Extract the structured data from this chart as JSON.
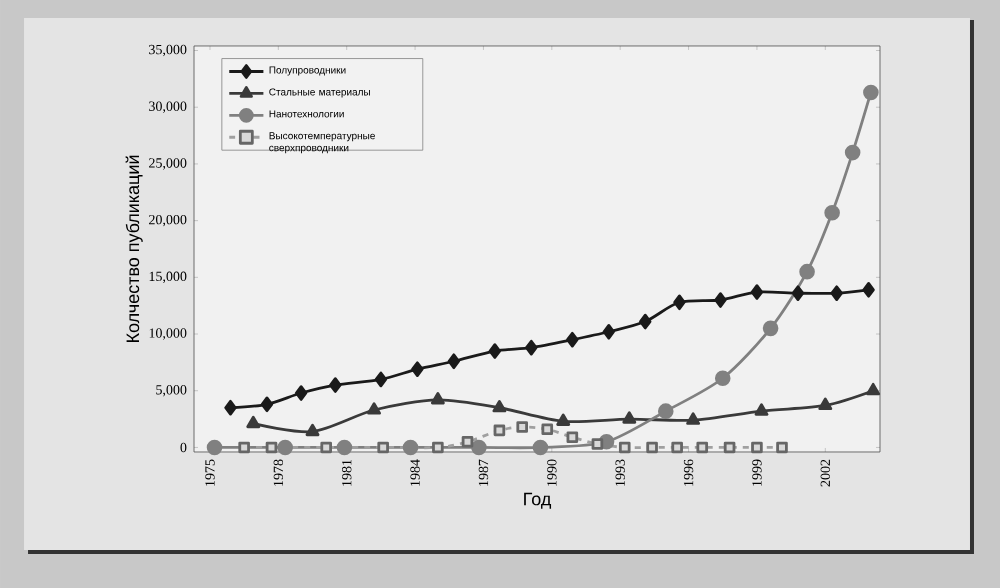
{
  "chart_data": {
    "type": "line",
    "xlabel": "Год",
    "ylabel": "Колчество публикаций",
    "legend": "top left",
    "xlim": [
      1974.3,
      2004.4
    ],
    "ylim": [
      -400,
      35400
    ],
    "xticks": [
      1975,
      1978,
      1981,
      1984,
      1987,
      1990,
      1993,
      1996,
      1999,
      2002
    ],
    "yticks": [
      {
        "value": 0,
        "label": "0"
      },
      {
        "value": 5000,
        "label": "5,000"
      },
      {
        "value": 10000,
        "label": "10,000"
      },
      {
        "value": 15000,
        "label": "15,000"
      },
      {
        "value": 20000,
        "label": "20,000"
      },
      {
        "value": 25000,
        "label": "25,000"
      },
      {
        "value": 30000,
        "label": "30,000"
      },
      {
        "value": 35000,
        "label": "35,000"
      }
    ],
    "series": [
      {
        "name": "Полупроводники",
        "color": "#1a1a1a",
        "marker": "diamond",
        "line_style": "solid",
        "x": [
          1975.9,
          1977.5,
          1979,
          1980.5,
          1982.5,
          1984.1,
          1985.7,
          1987.5,
          1989.1,
          1990.9,
          1992.5,
          1994.1,
          1995.6,
          1997.4,
          1999,
          2000.8,
          2002.5,
          2003.9
        ],
        "values": [
          3500,
          3800,
          4800,
          5500,
          6000,
          6900,
          7600,
          8500,
          8800,
          9500,
          10200,
          11100,
          12800,
          13000,
          13700,
          13600,
          13600,
          13900
        ]
      },
      {
        "name": "Стальные материалы",
        "color": "#3a3a3a",
        "marker": "triangle",
        "line_style": "solid",
        "x": [
          1976.9,
          1979.5,
          1982.2,
          1985,
          1987.7,
          1990.5,
          1993.4,
          1996.2,
          1999.2,
          2002,
          2004.1
        ],
        "values": [
          2100,
          1400,
          3300,
          4200,
          3500,
          2300,
          2500,
          2400,
          3200,
          3700,
          5000
        ]
      },
      {
        "name": "Нанотехнологии",
        "color": "#808080",
        "marker": "circle",
        "line_style": "solid",
        "x": [
          1975.2,
          1978.3,
          1980.9,
          1983.8,
          1986.8,
          1989.5,
          1992.4,
          1995,
          1997.5,
          1999.6,
          2001.2,
          2002.3,
          2003.2,
          2004
        ],
        "values": [
          0,
          0,
          0,
          0,
          0,
          0,
          500,
          3200,
          6100,
          10500,
          15500,
          20700,
          26000,
          31300
        ]
      },
      {
        "name": "Высокотемпературные сверхпроводники",
        "color": "#a0a0a0",
        "marker": "square",
        "line_style": "dashed",
        "x": [
          1976.5,
          1977.7,
          1980.1,
          1982.6,
          1985,
          1986.3,
          1987.7,
          1988.7,
          1989.8,
          1990.9,
          1992,
          1993.2,
          1994.4,
          1995.5,
          1996.6,
          1997.8,
          1999,
          2000.1
        ],
        "values": [
          0,
          0,
          0,
          0,
          0,
          500,
          1500,
          1800,
          1600,
          900,
          300,
          0,
          0,
          0,
          0,
          0,
          0,
          0
        ]
      }
    ]
  }
}
